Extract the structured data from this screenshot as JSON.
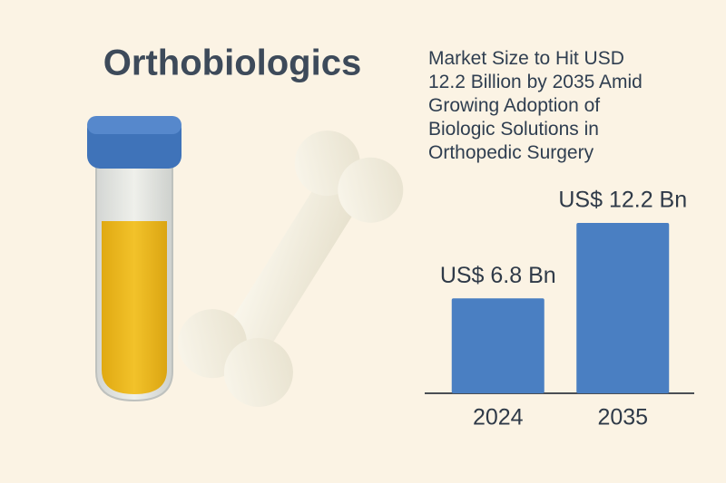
{
  "chart_data": {
    "type": "bar",
    "title": "Orthobiologics",
    "subtitle": "Market Size to Hit USD 12.2 Billion by 2035 Amid Growing Adoption of Biologic Solutions in Orthopedic Surgery",
    "categories": [
      "2024",
      "2035"
    ],
    "values": [
      6.8,
      12.2
    ],
    "value_labels": [
      "US$ 6.8 Bn",
      "US$ 12.2 Bn"
    ],
    "color": "#4a7fc2"
  }
}
